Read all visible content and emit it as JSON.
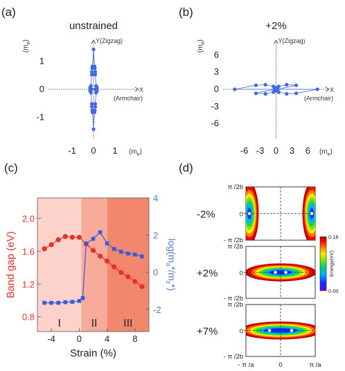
{
  "colors": {
    "polar_blue": "#4169e1",
    "gap_red": "#e8302a",
    "ratio_blue": "#3a5bd9",
    "region_I": "#fcd2ca",
    "region_II": "#f7ab9a",
    "region_III": "#f1886d",
    "axis_gray": "#333333",
    "ticklabel_blue": "#5577dd"
  },
  "chart_data": [
    {
      "panel": "(a)",
      "type": "scatter",
      "title": "unstrained",
      "xlabel": "X",
      "xlabel_sub": "(Armchair)",
      "ylabel": "Y(Zigzag)",
      "unit_x": "(m",
      "unit_y": "(m",
      "unit_sub": "e",
      "unit_close": ")",
      "xlim": [
        -2.1,
        2.1
      ],
      "ylim": [
        -1.75,
        1.75
      ],
      "xticks": [
        -1,
        0,
        1
      ],
      "xtick_labels": [
        "-1",
        "0",
        "1"
      ],
      "yticks": [
        -1,
        0,
        1
      ],
      "ytick_labels": [
        "-1",
        "0",
        "1"
      ],
      "points": [
        [
          0,
          1.42
        ],
        [
          -0.05,
          0.82
        ],
        [
          0.05,
          0.82
        ],
        [
          -0.06,
          0.75
        ],
        [
          0.06,
          0.75
        ],
        [
          -0.08,
          0.62
        ],
        [
          0.08,
          0.62
        ],
        [
          -0.08,
          0.52
        ],
        [
          0.08,
          0.52
        ],
        [
          -0.12,
          0.12
        ],
        [
          0.12,
          0.12
        ],
        [
          -0.16,
          0.06
        ],
        [
          0.16,
          0.06
        ],
        [
          -0.09,
          0
        ],
        [
          0.09,
          0
        ],
        [
          -0.16,
          -0.06
        ],
        [
          0.16,
          -0.06
        ],
        [
          -0.12,
          -0.12
        ],
        [
          0.12,
          -0.12
        ],
        [
          -0.08,
          -0.52
        ],
        [
          0.08,
          -0.52
        ],
        [
          -0.08,
          -0.62
        ],
        [
          0.08,
          -0.62
        ],
        [
          -0.06,
          -0.75
        ],
        [
          0.06,
          -0.75
        ],
        [
          -0.05,
          -0.82
        ],
        [
          0.05,
          -0.82
        ],
        [
          0,
          -1.42
        ]
      ]
    },
    {
      "panel": "(b)",
      "type": "scatter",
      "title": "+2%",
      "xlabel": "X",
      "xlabel_sub": "(Armchair)",
      "ylabel": "Y(Zigzag)",
      "unit_x": "(m",
      "unit_y": "(m",
      "unit_sub": "e",
      "unit_close": ")",
      "xlim": [
        -10,
        10
      ],
      "ylim": [
        -8.6,
        8.6
      ],
      "xticks": [
        -6,
        -3,
        0,
        3,
        6
      ],
      "xtick_labels": [
        "-6",
        "-3",
        "0",
        "3",
        "6"
      ],
      "yticks": [
        -6,
        -3,
        0,
        3,
        6
      ],
      "ytick_labels": [
        "-6",
        "-3",
        "0",
        "3",
        "6"
      ],
      "points": [
        [
          -7.8,
          0
        ],
        [
          7.8,
          0
        ],
        [
          -3.8,
          0.7
        ],
        [
          3.8,
          0.7
        ],
        [
          -3.8,
          -0.7
        ],
        [
          3.8,
          -0.7
        ],
        [
          -2.0,
          0.8
        ],
        [
          2.0,
          0.8
        ],
        [
          -2.0,
          -0.8
        ],
        [
          2.0,
          -0.8
        ],
        [
          -0.5,
          0.5
        ],
        [
          0.5,
          0.5
        ],
        [
          -0.5,
          -0.5
        ],
        [
          0.5,
          -0.5
        ],
        [
          -0.3,
          0
        ],
        [
          0.3,
          0
        ],
        [
          0,
          0.25
        ],
        [
          0,
          -0.25
        ]
      ]
    },
    {
      "panel": "(c)",
      "type": "line",
      "xlabel": "Strain  (%)",
      "ylabel_left": "Band gap (eV)",
      "ylabel_right_parts": [
        "log(m",
        "a",
        "*/m",
        "z",
        "*)"
      ],
      "xlim": [
        -6,
        10
      ],
      "ylim_left": [
        0.62,
        2.25
      ],
      "ylim_right": [
        -3.2,
        4.0
      ],
      "xticks": [
        -4,
        0,
        4,
        8
      ],
      "xtick_labels": [
        "-4",
        "0",
        "4",
        "8"
      ],
      "yticks_left": [
        0.8,
        1.2,
        1.6,
        2.0
      ],
      "ytick_labels_left": [
        "0.8",
        "1.2",
        "1.6",
        "2.0"
      ],
      "yticks_right": [
        -2,
        0,
        2,
        4
      ],
      "ytick_labels_right": [
        "-2",
        "0",
        "2",
        "4"
      ],
      "regions": [
        {
          "label": "I",
          "from": -6,
          "to": 0.3
        },
        {
          "label": "II",
          "from": 0.3,
          "to": 4
        },
        {
          "label": "III",
          "from": 4,
          "to": 10
        }
      ],
      "series": [
        {
          "axis": "left",
          "marker": "circle",
          "x": [
            -5,
            -4,
            -3,
            -2,
            -1,
            0,
            1,
            2,
            3,
            4,
            5,
            6,
            7,
            8,
            9
          ],
          "values": [
            1.63,
            1.68,
            1.74,
            1.78,
            1.77,
            1.77,
            1.69,
            1.61,
            1.54,
            1.48,
            1.41,
            1.34,
            1.29,
            1.23,
            1.17
          ]
        },
        {
          "axis": "right",
          "marker": "square",
          "x": [
            -5,
            -4,
            -3,
            -2,
            -1,
            0,
            0.5,
            1,
            2,
            3,
            4,
            5,
            6,
            7,
            8,
            9
          ],
          "values": [
            -1.65,
            -1.65,
            -1.65,
            -1.62,
            -1.6,
            -1.55,
            -1.4,
            1.55,
            1.8,
            2.15,
            1.55,
            1.25,
            1.1,
            1.0,
            0.95,
            0.85
          ]
        }
      ]
    },
    {
      "panel": "(d)",
      "type": "heatmap",
      "x_tick_labels": [
        "- π /a",
        "0",
        "π /a"
      ],
      "y_tick_labels": [
        "π /2b",
        "0",
        "- π /2b"
      ],
      "colorbar_label": "Energy(eV)",
      "colorbar_range": [
        0.0,
        0.18
      ],
      "colorbar_tick_labels": [
        "0.18",
        "0.00"
      ],
      "colorscale": [
        "#7a00d8",
        "#0030ff",
        "#00b0ff",
        "#00d080",
        "#80e000",
        "#f0f000",
        "#ff8000",
        "#ff0000",
        "#b00000"
      ],
      "subplots": [
        {
          "label": "-2%",
          "valleys": [
            [
              -0.9,
              0
            ],
            [
              0.9,
              0
            ]
          ]
        },
        {
          "label": "+2%",
          "valleys": [
            [
              -0.15,
              0
            ],
            [
              0.15,
              0
            ]
          ]
        },
        {
          "label": "+7%",
          "valleys": [
            [
              -0.32,
              0
            ],
            [
              0.32,
              0
            ]
          ]
        }
      ]
    }
  ]
}
